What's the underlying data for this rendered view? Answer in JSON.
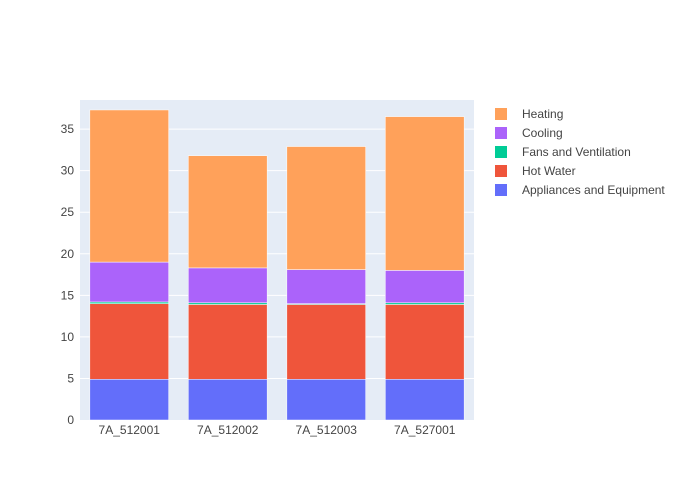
{
  "chart_data": {
    "type": "bar",
    "stacked": true,
    "categories": [
      "7A_512001",
      "7A_512002",
      "7A_512003",
      "7A_527001"
    ],
    "series": [
      {
        "name": "Appliances and Equipment",
        "color": "#636efa",
        "values": [
          4.9,
          4.9,
          4.9,
          4.9
        ]
      },
      {
        "name": "Hot Water",
        "color": "#ef553b",
        "values": [
          9.1,
          9.0,
          9.0,
          9.0
        ]
      },
      {
        "name": "Fans and Ventilation",
        "color": "#00cc96",
        "values": [
          0.2,
          0.2,
          0.1,
          0.2
        ]
      },
      {
        "name": "Cooling",
        "color": "#ab63fa",
        "values": [
          4.8,
          4.2,
          4.1,
          3.9
        ]
      },
      {
        "name": "Heating",
        "color": "#ffa15a",
        "values": [
          18.3,
          13.5,
          14.8,
          18.5
        ]
      }
    ],
    "ylim": [
      0,
      38.5
    ],
    "yticks": [
      0,
      5,
      10,
      15,
      20,
      25,
      30,
      35
    ],
    "grid": true,
    "legend_position": "right",
    "plot_background": "#e5ecf6"
  }
}
